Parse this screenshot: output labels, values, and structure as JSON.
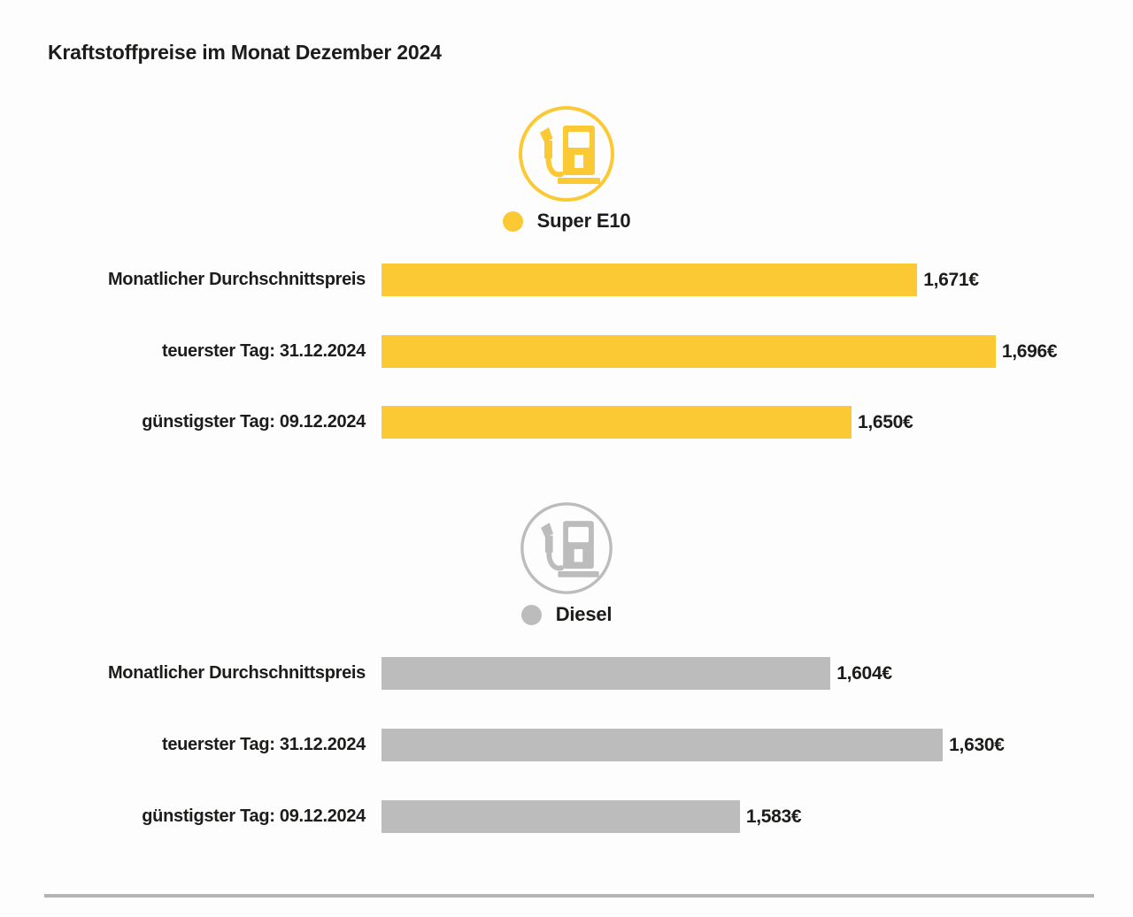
{
  "page": {
    "title": "Kraftstoffpreise im Monat Dezember 2024",
    "background": "#fdfdfd",
    "text_color": "#1c1c1a",
    "divider_color": "#b4b4b4"
  },
  "chart_data": {
    "type": "bar",
    "orientation": "horizontal",
    "title": "Kraftstoffpreise im Monat Dezember 2024",
    "unit": "EUR",
    "legend_position": "above-each-group",
    "grid": false,
    "groups": [
      {
        "name": "Super E10",
        "color": "#fbc933",
        "icon": "fuel-pump-icon",
        "axis_min": 1.5,
        "axis_max": 1.726,
        "rows": [
          {
            "label": "Monatlicher Durchschnittspreis",
            "value": 1.671,
            "display": "1,671€"
          },
          {
            "label": "teuerster Tag: 31.12.2024",
            "value": 1.696,
            "display": "1,696€"
          },
          {
            "label": "günstigster Tag: 09.12.2024",
            "value": 1.65,
            "display": "1,650€"
          }
        ]
      },
      {
        "name": "Diesel",
        "color": "#bcbcbc",
        "icon": "fuel-pump-icon",
        "axis_min": 1.5,
        "axis_max": 1.664,
        "rows": [
          {
            "label": "Monatlicher Durchschnittspreis",
            "value": 1.604,
            "display": "1,604€"
          },
          {
            "label": "teuerster Tag: 31.12.2024",
            "value": 1.63,
            "display": "1,630€"
          },
          {
            "label": "günstigster Tag: 09.12.2024",
            "value": 1.583,
            "display": "1,583€"
          }
        ]
      }
    ]
  }
}
